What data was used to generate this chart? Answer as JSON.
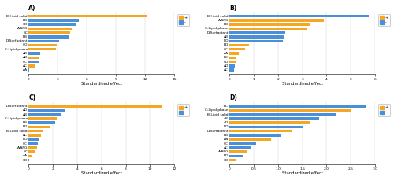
{
  "A": {
    "title": "A)",
    "xlabel": "Standardized effect",
    "labels": [
      "B:Lipid solid",
      "BD",
      "CD",
      "A:APG",
      "BC",
      "BB",
      "D:Surfactant",
      "CO",
      "C:Lipid phase",
      "AB",
      "AD",
      "CC",
      "AC",
      "AA"
    ],
    "values": [
      12.2,
      5.2,
      4.8,
      4.5,
      4.3,
      4.1,
      3.1,
      2.9,
      2.8,
      1.2,
      1.1,
      1.0,
      0.7,
      0.05
    ],
    "colors": [
      "#F5A623",
      "#4A90D9",
      "#4A90D9",
      "#F5A623",
      "#F5A623",
      "#4A90D9",
      "#4A90D9",
      "#F5A623",
      "#F5A623",
      "#4A90D9",
      "#F5A623",
      "#4A90D9",
      "#F5A623",
      "#4A90D9"
    ],
    "xlim": [
      0,
      15
    ],
    "xticks": [
      0,
      3,
      6,
      9,
      12,
      15
    ]
  },
  "B": {
    "title": "B)",
    "xlabel": "Standardized effect",
    "labels": [
      "B:Lipid solid",
      "A:APG",
      "BB",
      "C:Lipid phase",
      "D:Surfactant",
      "AB",
      "DD",
      "BD",
      "CC",
      "AA",
      "BC",
      "CD",
      "AD",
      "AC"
    ],
    "values": [
      5.75,
      3.9,
      3.3,
      3.2,
      2.3,
      2.25,
      2.2,
      0.8,
      0.65,
      0.38,
      0.28,
      0.25,
      0.22,
      0.2
    ],
    "colors": [
      "#4A90D9",
      "#F5A623",
      "#F5A623",
      "#F5A623",
      "#4A90D9",
      "#4A90D9",
      "#4A90D9",
      "#F5A623",
      "#F5A623",
      "#F5A623",
      "#F5A623",
      "#F5A623",
      "#4A90D9",
      "#4A90D9"
    ],
    "xlim": [
      0,
      6
    ],
    "xticks": [
      0,
      1,
      2,
      3,
      4,
      5,
      6
    ]
  },
  "C": {
    "title": "C)",
    "xlabel": "Standardized effect",
    "labels": [
      "D:Surfactant",
      "AD",
      "AB",
      "C:Lipid phase",
      "BB",
      "BD",
      "B:Lipid solid",
      "AC",
      "DD",
      "CC",
      "A:APG",
      "BC",
      "AA",
      "CD"
    ],
    "values": [
      11.0,
      3.0,
      2.7,
      2.3,
      2.2,
      1.7,
      1.2,
      1.0,
      0.85,
      0.75,
      0.7,
      0.5,
      0.2,
      0.05
    ],
    "colors": [
      "#F5A623",
      "#4A90D9",
      "#4A90D9",
      "#F5A623",
      "#4A90D9",
      "#F5A623",
      "#F5A623",
      "#F5A623",
      "#4A90D9",
      "#4A90D9",
      "#F5A623",
      "#F5A623",
      "#F5A623",
      "#4A90D9"
    ],
    "xlim": [
      0,
      12
    ],
    "xticks": [
      0,
      2,
      4,
      6,
      8,
      10,
      12
    ]
  },
  "D": {
    "title": "D)",
    "xlabel": "Standardized effect",
    "labels": [
      "BC",
      "C:Lipid phase",
      "B:Lipid solid",
      "AB",
      "AD",
      "DD",
      "D:Surfactant",
      "BB",
      "AA",
      "CC",
      "AC",
      "A:APG",
      "BD",
      "CD"
    ],
    "values": [
      2.8,
      2.5,
      2.2,
      1.85,
      1.65,
      1.5,
      1.3,
      1.05,
      0.85,
      0.55,
      0.45,
      0.35,
      0.28,
      0.13
    ],
    "colors": [
      "#4A90D9",
      "#F5A623",
      "#4A90D9",
      "#4A90D9",
      "#F5A623",
      "#4A90D9",
      "#F5A623",
      "#4A90D9",
      "#F5A623",
      "#4A90D9",
      "#4A90D9",
      "#F5A623",
      "#4A90D9",
      "#F5A623"
    ],
    "xlim": [
      0,
      3.0
    ],
    "xticks": [
      0,
      0.5,
      1.0,
      1.5,
      2.0,
      2.5,
      3.0
    ]
  },
  "legend_plus_color": "#F5A623",
  "legend_minus_color": "#4A90D9",
  "bar_height": 0.65,
  "background_color": "#ffffff"
}
